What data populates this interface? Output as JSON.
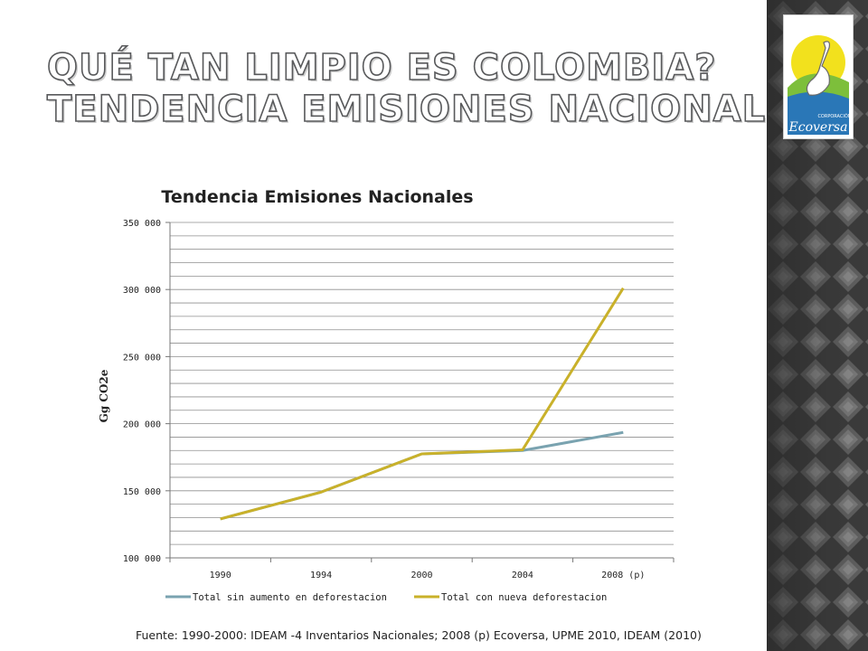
{
  "slide": {
    "title_line1": "Qué tan limpio es Colombia?",
    "title_line2": "Tendencia emisiones nacionales",
    "source_note": "Fuente: 1990-2000: IDEAM -4 Inventarios Nacionales; 2008 (p) Ecoversa, UPME 2010, IDEAM (2010)"
  },
  "logo": {
    "small_text": "CORPORACIÓN",
    "name": "Ecoversa",
    "colors": {
      "yellow": "#f2e11d",
      "green": "#7dbf3b",
      "blue": "#2a77b7"
    }
  },
  "chart_data": {
    "type": "line",
    "title": "Tendencia Emisiones Nacionales",
    "xlabel": "",
    "ylabel": "Gg CO2e",
    "categories": [
      "1990",
      "1994",
      "2000",
      "2004",
      "2008 (p)"
    ],
    "ylim": [
      100000,
      350000
    ],
    "y_ticks": [
      100000,
      150000,
      200000,
      250000,
      300000,
      350000
    ],
    "y_tick_labels": [
      "100 000",
      "150 000",
      "200 000",
      "250 000",
      "300 000",
      "350 000"
    ],
    "minor_grid_step": 10000,
    "grid": true,
    "legend_position": "bottom",
    "series": [
      {
        "name": "Total sin aumento en deforestacion",
        "color": "#7aa3b0",
        "values": [
          129000,
          149000,
          177500,
          180000,
          193500
        ]
      },
      {
        "name": "Total con nueva deforestacion",
        "color": "#c9b12a",
        "values": [
          129000,
          149000,
          177500,
          180500,
          301000
        ]
      }
    ]
  }
}
